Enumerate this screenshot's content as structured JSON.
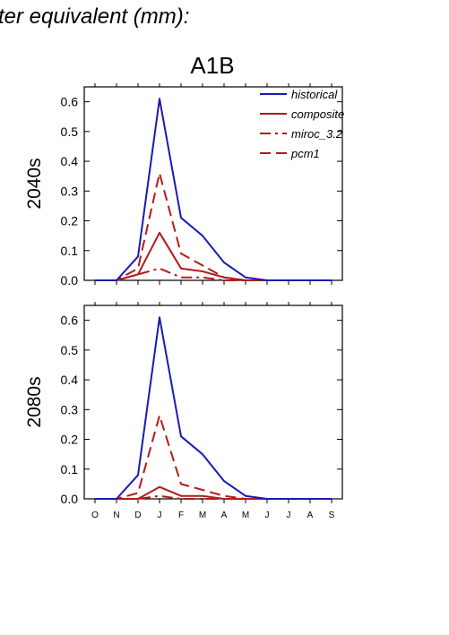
{
  "header": {
    "title": "ter equivalent (mm):"
  },
  "scenario": "A1B",
  "colors": {
    "historical": "#1a1ab4",
    "projection": "#b41a1a",
    "axis": "#000000"
  },
  "chart_data": [
    {
      "type": "line",
      "panel_label": "2040s",
      "x": [
        "O",
        "N",
        "D",
        "J",
        "F",
        "M",
        "A",
        "M",
        "J",
        "J",
        "A",
        "S"
      ],
      "ylim": [
        0,
        0.65
      ],
      "yticks": [
        "0.0",
        "0.1",
        "0.2",
        "0.3",
        "0.4",
        "0.5",
        "0.6"
      ],
      "legend": "top-right",
      "series": [
        {
          "name": "historical",
          "color": "#1a1ab4",
          "dash": "solid",
          "values": [
            0,
            0,
            0.08,
            0.61,
            0.21,
            0.15,
            0.06,
            0.01,
            0,
            0,
            0,
            0
          ]
        },
        {
          "name": "composite",
          "color": "#b41a1a",
          "dash": "solid",
          "values": [
            0,
            0,
            0.02,
            0.16,
            0.04,
            0.03,
            0.01,
            0,
            0,
            0,
            0,
            0
          ]
        },
        {
          "name": "miroc_3.2",
          "color": "#b41a1a",
          "dash": "dashdot",
          "values": [
            0,
            0,
            0.02,
            0.04,
            0.01,
            0.01,
            0,
            0,
            0,
            0,
            0,
            0
          ]
        },
        {
          "name": "pcm1",
          "color": "#b41a1a",
          "dash": "dash",
          "values": [
            0,
            0,
            0.04,
            0.36,
            0.09,
            0.05,
            0.01,
            0,
            0,
            0,
            0,
            0
          ]
        }
      ]
    },
    {
      "type": "line",
      "panel_label": "2080s",
      "x": [
        "O",
        "N",
        "D",
        "J",
        "F",
        "M",
        "A",
        "M",
        "J",
        "J",
        "A",
        "S"
      ],
      "ylim": [
        0,
        0.65
      ],
      "yticks": [
        "0.0",
        "0.1",
        "0.2",
        "0.3",
        "0.4",
        "0.5",
        "0.6"
      ],
      "series": [
        {
          "name": "historical",
          "color": "#1a1ab4",
          "dash": "solid",
          "values": [
            0,
            0,
            0.08,
            0.61,
            0.21,
            0.15,
            0.06,
            0.01,
            0,
            0,
            0,
            0
          ]
        },
        {
          "name": "composite",
          "color": "#b41a1a",
          "dash": "solid",
          "values": [
            0,
            0,
            0,
            0.04,
            0.01,
            0.01,
            0,
            0,
            0,
            0,
            0,
            0
          ]
        },
        {
          "name": "miroc_3.2",
          "color": "#b41a1a",
          "dash": "dashdot",
          "values": [
            0,
            0,
            0,
            0.01,
            0,
            0,
            0,
            0,
            0,
            0,
            0,
            0
          ]
        },
        {
          "name": "pcm1",
          "color": "#b41a1a",
          "dash": "dash",
          "values": [
            0,
            0,
            0.02,
            0.28,
            0.05,
            0.03,
            0.01,
            0,
            0,
            0,
            0,
            0
          ]
        }
      ]
    }
  ]
}
